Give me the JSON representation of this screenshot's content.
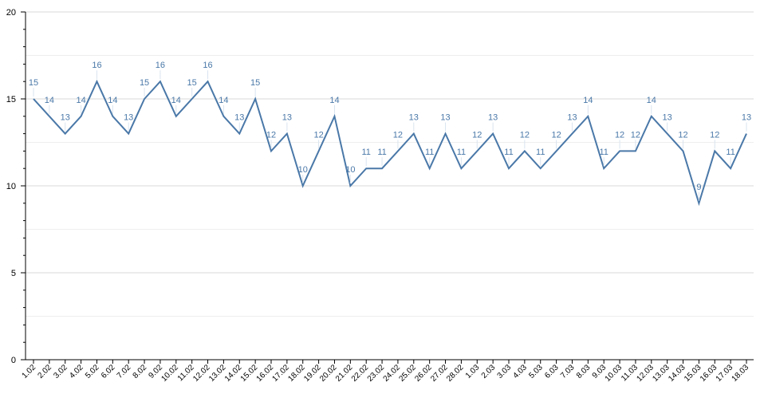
{
  "chart_data": {
    "type": "line",
    "categories": [
      "1.02",
      "2.02",
      "3.02",
      "4.02",
      "5.02",
      "6.02",
      "7.02",
      "8.02",
      "9.02",
      "10.02",
      "11.02",
      "12.02",
      "13.02",
      "14.02",
      "15.02",
      "16.02",
      "17.02",
      "18.02",
      "19.02",
      "20.02",
      "21.02",
      "22.02",
      "23.02",
      "24.02",
      "25.02",
      "26.02",
      "27.02",
      "28.02",
      "1.03",
      "2.03",
      "3.03",
      "4.03",
      "5.03",
      "6.03",
      "7.03",
      "8.03",
      "9.03",
      "10.03",
      "11.03",
      "12.03",
      "13.03",
      "14.03",
      "15.03",
      "16.03",
      "17.03",
      "18.03"
    ],
    "series": [
      {
        "values": [
          15,
          14,
          13,
          14,
          16,
          14,
          13,
          15,
          16,
          14,
          15,
          16,
          14,
          13,
          15,
          12,
          13,
          10,
          12,
          14,
          10,
          11,
          11,
          12,
          13,
          11,
          13,
          11,
          12,
          13,
          11,
          12,
          11,
          12,
          13,
          14,
          11,
          12,
          12,
          14,
          13,
          12,
          9,
          12,
          11,
          13
        ],
        "color": "#4a78a8"
      }
    ],
    "ylim": [
      0,
      20
    ],
    "yticks": [
      0,
      5,
      10,
      15,
      20
    ],
    "grid": true,
    "data_labels": true
  }
}
